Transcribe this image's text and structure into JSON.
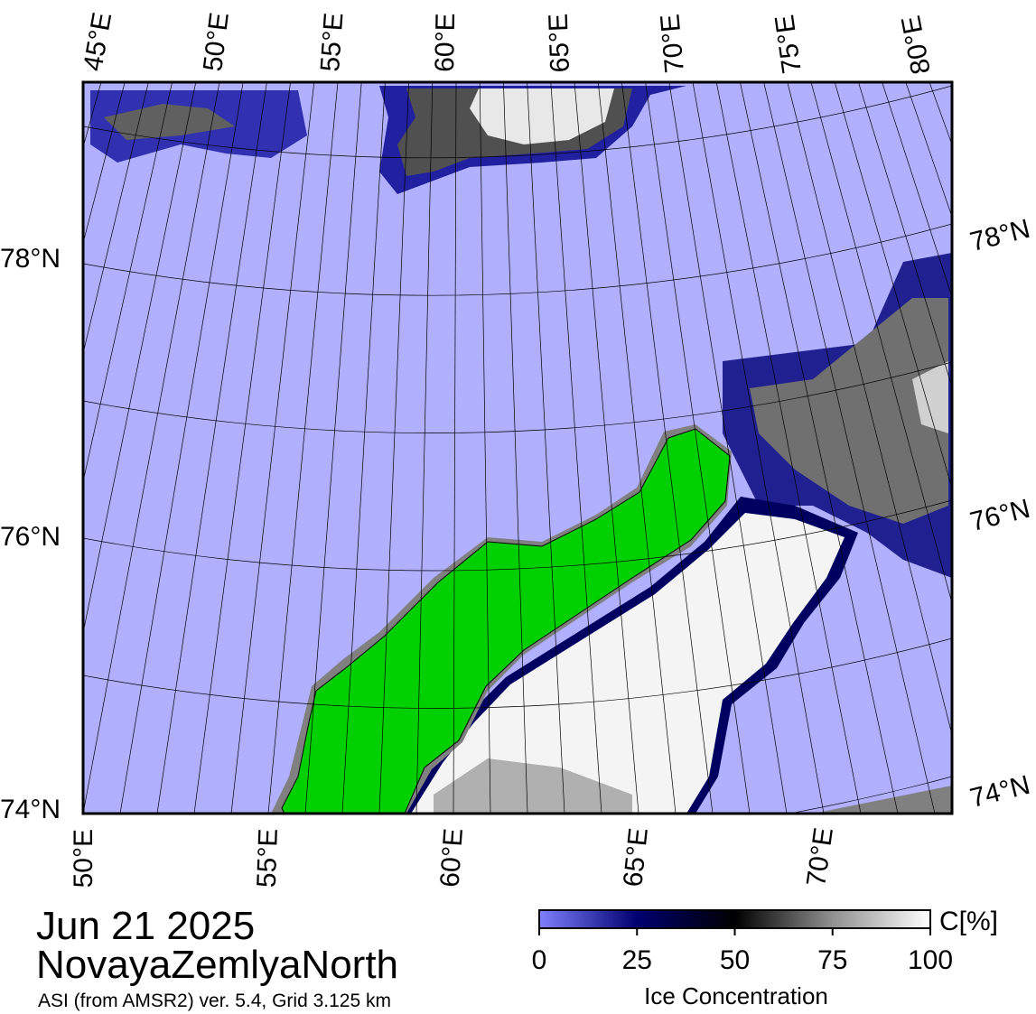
{
  "header": {
    "date": "Jun 21 2025",
    "region": "NovayaZemlyaNorth",
    "source": "ASI (from AMSR2) ver. 5.4,  Grid 3.125 km"
  },
  "map": {
    "top_lon_labels": [
      "45°E",
      "50°E",
      "55°E",
      "60°E",
      "65°E",
      "70°E",
      "75°E",
      "80°E"
    ],
    "bottom_lon_labels": [
      "50°E",
      "55°E",
      "60°E",
      "65°E",
      "70°E"
    ],
    "left_lat_labels": [
      "78°N",
      "76°N",
      "74°N"
    ],
    "right_lat_labels": [
      "78°N",
      "76°N",
      "74°N"
    ]
  },
  "colorbar": {
    "title": "Ice Concentration",
    "unit": "C[%]",
    "range": [
      0,
      100
    ],
    "ticks": [
      0,
      25,
      50,
      75,
      100
    ]
  }
}
